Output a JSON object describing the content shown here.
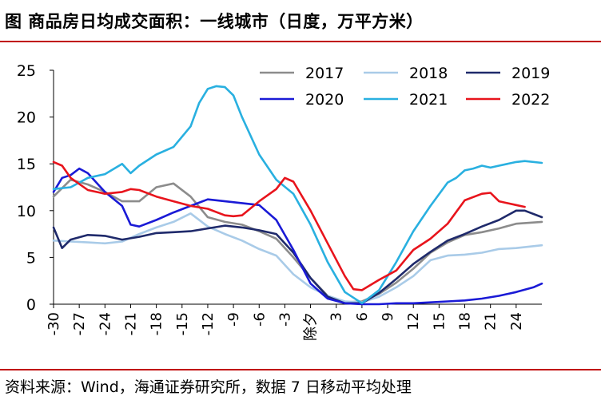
{
  "header": {
    "title": "图 商品房日均成交面积：一线城市（日度，万平方米）"
  },
  "footer": {
    "source": "资料来源：Wind，海通证券研究所，数据 7 日移动平均处理"
  },
  "chart_data": {
    "type": "line",
    "title": "商品房日均成交面积：一线城市（日度，万平方米）",
    "xlabel": "",
    "ylabel": "",
    "xlim": [
      -30,
      27
    ],
    "ylim": [
      0,
      25
    ],
    "yticks": [
      0,
      5,
      10,
      15,
      20,
      25
    ],
    "xticks": [
      -30,
      -27,
      -24,
      -21,
      -18,
      -15,
      -12,
      -9,
      -6,
      -3,
      0,
      3,
      6,
      9,
      12,
      15,
      18,
      21,
      24
    ],
    "xtick_labels": [
      "-30",
      "-27",
      "-24",
      "-21",
      "-18",
      "-15",
      "-12",
      "-9",
      "-6",
      "-3",
      "除夕",
      "3",
      "6",
      "9",
      "12",
      "15",
      "18",
      "21",
      "24"
    ],
    "grid": false,
    "legend_position": "top-right",
    "series": [
      {
        "name": "2017",
        "color": "#8c8c8c",
        "x": [
          -30,
          -28,
          -26,
          -24,
          -22,
          -20,
          -18,
          -16,
          -14,
          -12,
          -10,
          -8,
          -6,
          -4,
          -2,
          0,
          2,
          4,
          6,
          8,
          10,
          12,
          14,
          16,
          18,
          20,
          22,
          24,
          27
        ],
        "values": [
          11.5,
          13.3,
          12.8,
          12.0,
          11.0,
          11.0,
          12.5,
          12.9,
          11.5,
          9.3,
          8.8,
          8.5,
          7.8,
          7.0,
          5.0,
          2.8,
          0.9,
          0.2,
          0.3,
          1.1,
          2.3,
          3.8,
          5.5,
          6.6,
          7.4,
          7.7,
          8.1,
          8.6,
          8.8
        ]
      },
      {
        "name": "2018",
        "color": "#a9cbe8",
        "x": [
          -30,
          -28,
          -26,
          -24,
          -22,
          -20,
          -18,
          -16,
          -14,
          -12,
          -10,
          -8,
          -6,
          -4,
          -2,
          0,
          2,
          4,
          6,
          8,
          10,
          12,
          14,
          16,
          18,
          20,
          22,
          24,
          27
        ],
        "values": [
          6.8,
          6.7,
          6.6,
          6.5,
          6.7,
          7.5,
          8.2,
          8.8,
          9.7,
          8.3,
          7.5,
          6.8,
          5.9,
          5.2,
          3.2,
          1.8,
          0.9,
          0.3,
          0.2,
          0.8,
          1.8,
          3.0,
          4.7,
          5.2,
          5.3,
          5.5,
          5.9,
          6.0,
          6.3
        ]
      },
      {
        "name": "2019",
        "color": "#1f2a6b",
        "x": [
          -30,
          -29,
          -28,
          -26,
          -24,
          -22,
          -20,
          -18,
          -16,
          -14,
          -12,
          -10,
          -8,
          -6,
          -4,
          -2,
          0,
          2,
          4,
          6,
          8,
          10,
          12,
          14,
          16,
          18,
          20,
          22,
          24,
          25,
          27
        ],
        "values": [
          8.2,
          6.0,
          6.9,
          7.4,
          7.3,
          6.9,
          7.2,
          7.6,
          7.7,
          7.8,
          8.1,
          8.4,
          8.2,
          7.9,
          7.5,
          5.5,
          2.8,
          0.8,
          0.1,
          0.1,
          1.2,
          2.7,
          4.3,
          5.6,
          6.8,
          7.5,
          8.3,
          9.0,
          10.0,
          10.0,
          9.3
        ]
      },
      {
        "name": "2020",
        "color": "#1a1ad6",
        "x": [
          -30,
          -29,
          -28,
          -27,
          -26,
          -24,
          -22,
          -21,
          -20,
          -18,
          -16,
          -14,
          -12,
          -10,
          -8,
          -6,
          -4,
          -2,
          0,
          2,
          4,
          6,
          8,
          10,
          12,
          14,
          16,
          18,
          20,
          22,
          24,
          26,
          27
        ],
        "values": [
          12.0,
          13.5,
          13.8,
          14.5,
          14.0,
          12.0,
          10.5,
          8.5,
          8.3,
          9.0,
          9.8,
          10.5,
          11.2,
          11.0,
          10.8,
          10.6,
          9.0,
          5.8,
          2.2,
          0.6,
          0.1,
          0.0,
          0.0,
          0.1,
          0.1,
          0.2,
          0.3,
          0.4,
          0.6,
          0.9,
          1.3,
          1.8,
          2.2
        ]
      },
      {
        "name": "2021",
        "color": "#29b0e0",
        "x": [
          -30,
          -28,
          -26,
          -24,
          -22,
          -21,
          -20,
          -18,
          -16,
          -14,
          -13,
          -12,
          -11,
          -10,
          -9,
          -8,
          -6,
          -4,
          -2,
          0,
          2,
          4,
          6,
          8,
          10,
          12,
          14,
          16,
          17,
          18,
          19,
          20,
          21,
          22,
          24,
          25,
          27
        ],
        "values": [
          12.3,
          12.5,
          13.5,
          13.9,
          15.0,
          14.0,
          14.8,
          16.0,
          16.8,
          19.0,
          21.5,
          23.0,
          23.3,
          23.2,
          22.3,
          20.0,
          16.0,
          13.3,
          11.8,
          8.5,
          4.5,
          1.3,
          0.1,
          1.5,
          4.5,
          7.8,
          10.5,
          13.0,
          13.5,
          14.3,
          14.5,
          14.8,
          14.6,
          14.8,
          15.2,
          15.3,
          15.1
        ]
      },
      {
        "name": "2022",
        "color": "#e8141c",
        "x": [
          -30,
          -29,
          -28,
          -26,
          -24,
          -22,
          -21,
          -20,
          -18,
          -16,
          -14,
          -12,
          -10,
          -9,
          -8,
          -6,
          -4,
          -3,
          -2,
          0,
          2,
          4,
          5,
          6,
          8,
          10,
          12,
          14,
          16,
          18,
          20,
          21,
          22,
          24,
          25
        ],
        "values": [
          15.2,
          14.8,
          13.5,
          12.2,
          11.8,
          12.0,
          12.3,
          12.2,
          11.5,
          11.0,
          10.5,
          10.2,
          9.5,
          9.4,
          9.5,
          11.0,
          12.3,
          13.5,
          13.1,
          10.0,
          6.5,
          3.0,
          1.6,
          1.5,
          2.6,
          3.6,
          5.8,
          7.0,
          8.6,
          11.1,
          11.8,
          11.9,
          11.0,
          10.6,
          10.4
        ]
      }
    ]
  }
}
